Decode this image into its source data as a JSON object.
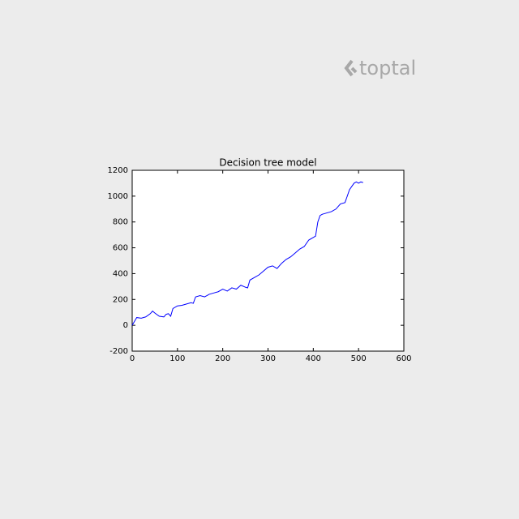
{
  "logo": "toptal",
  "chart_data": {
    "type": "line",
    "title": "Decision tree model",
    "x": [
      0,
      5,
      10,
      20,
      30,
      40,
      45,
      50,
      60,
      70,
      75,
      80,
      85,
      90,
      100,
      110,
      120,
      130,
      135,
      140,
      150,
      160,
      170,
      180,
      190,
      200,
      210,
      220,
      230,
      240,
      250,
      255,
      260,
      270,
      280,
      290,
      300,
      310,
      320,
      330,
      340,
      350,
      360,
      370,
      380,
      390,
      400,
      405,
      410,
      415,
      420,
      430,
      440,
      450,
      460,
      470,
      475,
      480,
      490,
      495,
      500,
      505,
      510
    ],
    "series": [
      {
        "name": "Decision tree model",
        "color": "#0000ff",
        "values": [
          0,
          30,
          60,
          55,
          65,
          90,
          110,
          95,
          70,
          65,
          85,
          90,
          70,
          130,
          150,
          155,
          165,
          175,
          170,
          220,
          230,
          220,
          240,
          250,
          260,
          280,
          265,
          290,
          280,
          310,
          295,
          290,
          350,
          370,
          390,
          420,
          450,
          460,
          440,
          480,
          510,
          530,
          560,
          590,
          610,
          660,
          680,
          690,
          800,
          850,
          860,
          870,
          880,
          900,
          940,
          950,
          1000,
          1050,
          1100,
          1110,
          1100,
          1110,
          1105
        ]
      }
    ],
    "xlim": [
      0,
      600
    ],
    "xticks": [
      0,
      100,
      200,
      300,
      400,
      500,
      600
    ],
    "ylim": [
      -200,
      1200
    ],
    "yticks": [
      -200,
      0,
      200,
      400,
      600,
      800,
      1000,
      1200
    ],
    "grid": false
  }
}
